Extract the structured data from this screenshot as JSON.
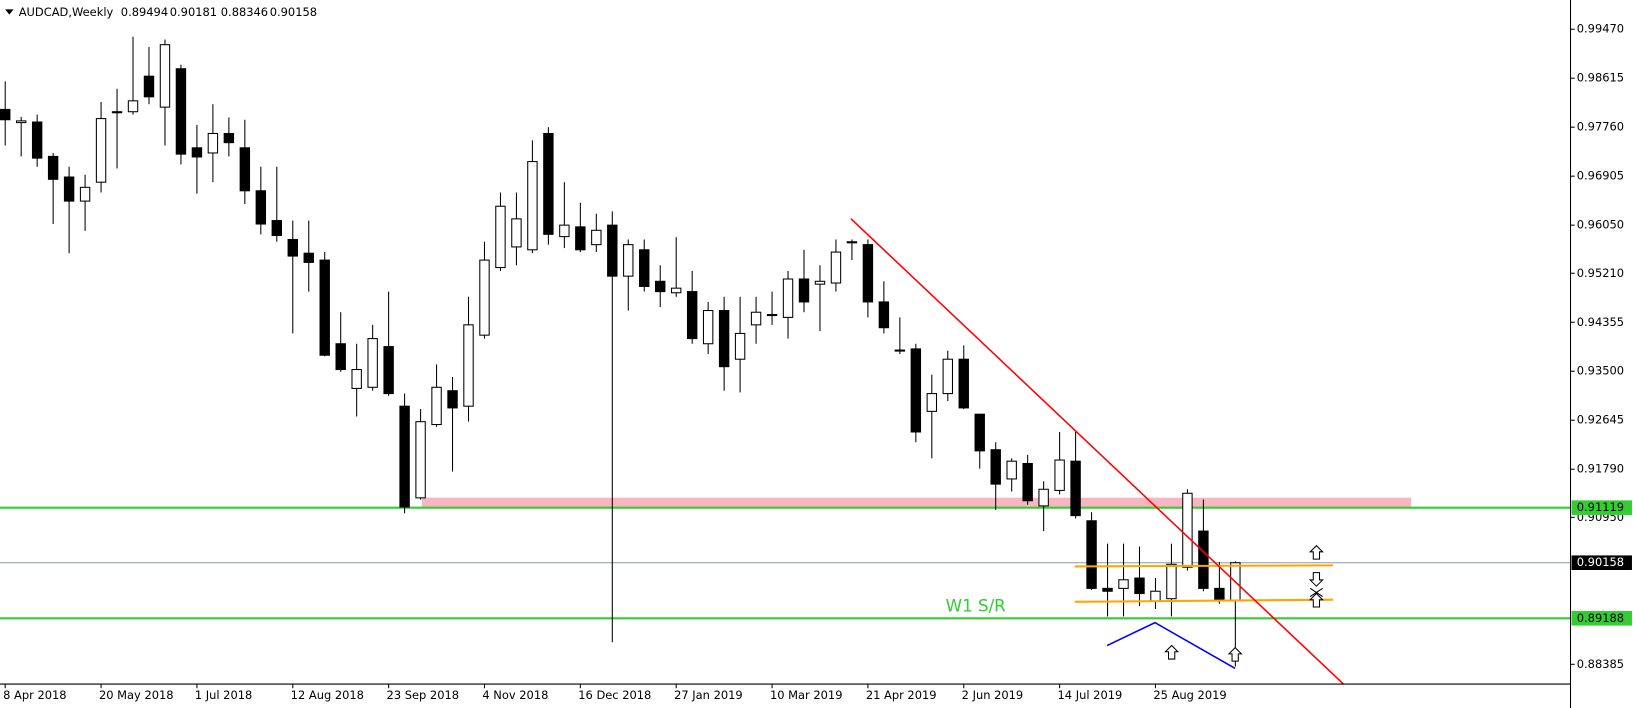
{
  "chart_data": {
    "type": "candlestick",
    "symbol": "AUDCAD,Weekly",
    "categories": [
      "8 Apr 2018",
      null,
      null,
      null,
      null,
      null,
      "20 May 2018",
      null,
      null,
      null,
      null,
      null,
      "1 Jul 2018",
      null,
      null,
      null,
      null,
      null,
      "12 Aug 2018",
      null,
      null,
      null,
      null,
      null,
      "23 Sep 2018",
      null,
      null,
      null,
      null,
      null,
      "4 Nov 2018",
      null,
      null,
      null,
      null,
      null,
      "16 Dec 2018",
      null,
      null,
      null,
      null,
      null,
      "27 Jan 2019",
      null,
      null,
      null,
      null,
      null,
      "10 Mar 2019",
      null,
      null,
      null,
      null,
      null,
      "21 Apr 2019",
      null,
      null,
      null,
      null,
      null,
      "2 Jun 2019",
      null,
      null,
      null,
      null,
      null,
      "14 Jul 2019",
      null,
      null,
      null,
      null,
      null,
      "25 Aug 2019",
      null,
      null,
      null,
      null,
      null
    ],
    "open": [
      0.9807,
      0.9784,
      0.9785,
      0.9725,
      0.9689,
      0.9647,
      0.968,
      0.9802,
      0.9803,
      0.9865,
      0.9811,
      0.9878,
      0.974,
      0.9731,
      0.9765,
      0.974,
      0.9665,
      0.9613,
      0.958,
      0.9556,
      0.9544,
      0.9398,
      0.932,
      0.9322,
      0.9393,
      0.9289,
      0.9129,
      0.9257,
      0.9316,
      0.9289,
      0.9413,
      0.9531,
      0.9567,
      0.9562,
      0.9765,
      0.9585,
      0.9602,
      0.9571,
      0.9605,
      0.9516,
      0.9562,
      0.9507,
      0.9487,
      0.9489,
      0.9398,
      0.9456,
      0.9371,
      0.9431,
      0.9449,
      0.9444,
      0.9511,
      0.9502,
      0.9504,
      0.9575,
      0.9571,
      0.9471,
      0.9387,
      0.9389,
      0.928,
      0.9311,
      0.9371,
      0.9275,
      0.9213,
      0.9162,
      0.9189,
      0.9115,
      0.9142,
      0.9193,
      0.9089,
      0.8971,
      0.8971,
      0.8989,
      0.8949,
      0.8953,
      0.9008,
      0.9071,
      0.8971,
      0.89494
    ],
    "high": [
      0.9856,
      0.9794,
      0.9798,
      0.9731,
      0.9707,
      0.9693,
      0.982,
      0.9843,
      0.9934,
      0.9916,
      0.9929,
      0.9885,
      0.978,
      0.9816,
      0.9793,
      0.9789,
      0.9707,
      0.9707,
      0.9613,
      0.9613,
      0.9558,
      0.9453,
      0.9398,
      0.9431,
      0.9489,
      0.9311,
      0.9284,
      0.9362,
      0.934,
      0.948,
      0.9576,
      0.9662,
      0.9662,
      0.9753,
      0.9776,
      0.968,
      0.9644,
      0.9625,
      0.9629,
      0.958,
      0.958,
      0.9535,
      0.9584,
      0.9525,
      0.9471,
      0.948,
      0.948,
      0.948,
      0.9489,
      0.9525,
      0.9562,
      0.9535,
      0.958,
      0.958,
      0.958,
      0.9507,
      0.9444,
      0.9398,
      0.9344,
      0.9386,
      0.9395,
      0.9275,
      0.9226,
      0.9198,
      0.9204,
      0.9158,
      0.9244,
      0.9244,
      0.9104,
      0.9049,
      0.9049,
      0.9044,
      0.8989,
      0.9049,
      0.9144,
      0.9126,
      0.9017,
      0.90181
    ],
    "low": [
      0.9744,
      0.9725,
      0.9707,
      0.9607,
      0.9556,
      0.9595,
      0.9662,
      0.9704,
      0.9798,
      0.9816,
      0.9744,
      0.9711,
      0.966,
      0.968,
      0.9725,
      0.9642,
      0.9589,
      0.9576,
      0.9416,
      0.9489,
      0.9376,
      0.9349,
      0.9271,
      0.9316,
      0.9307,
      0.9102,
      0.9126,
      0.9253,
      0.9175,
      0.9262,
      0.9407,
      0.9525,
      0.9535,
      0.9556,
      0.9571,
      0.9565,
      0.9558,
      0.9558,
      0.8877,
      0.9456,
      0.9489,
      0.9462,
      0.948,
      0.9398,
      0.938,
      0.9316,
      0.9313,
      0.9398,
      0.9431,
      0.9407,
      0.9453,
      0.942,
      0.9489,
      0.9544,
      0.9444,
      0.9416,
      0.938,
      0.9226,
      0.9198,
      0.9298,
      0.9284,
      0.918,
      0.9108,
      0.914,
      0.9117,
      0.9071,
      0.9135,
      0.9093,
      0.8968,
      0.8922,
      0.8922,
      0.894,
      0.8935,
      0.8922,
      0.9002,
      0.8966,
      0.8944,
      0.88346
    ],
    "close": [
      0.9789,
      0.9787,
      0.9722,
      0.9685,
      0.9647,
      0.9671,
      0.9791,
      0.9803,
      0.9822,
      0.9829,
      0.992,
      0.9729,
      0.9724,
      0.9765,
      0.9749,
      0.9665,
      0.9607,
      0.9587,
      0.9551,
      0.954,
      0.9378,
      0.9353,
      0.9353,
      0.9407,
      0.9311,
      0.9113,
      0.9262,
      0.9322,
      0.9286,
      0.9431,
      0.9544,
      0.9638,
      0.9616,
      0.9716,
      0.9589,
      0.9605,
      0.9562,
      0.9596,
      0.9516,
      0.9571,
      0.9498,
      0.9489,
      0.9495,
      0.9407,
      0.9456,
      0.9358,
      0.9416,
      0.9453,
      0.9448,
      0.9511,
      0.9471,
      0.9507,
      0.9558,
      0.9576,
      0.9471,
      0.9426,
      0.9386,
      0.9244,
      0.9311,
      0.9371,
      0.9286,
      0.9211,
      0.9153,
      0.9193,
      0.9124,
      0.9144,
      0.9195,
      0.9098,
      0.8971,
      0.8966,
      0.8986,
      0.8962,
      0.8966,
      0.9013,
      0.9137,
      0.8971,
      0.8949,
      0.90158
    ],
    "up_color": "#ffffff",
    "down_color": "#000000",
    "ylim": [
      0.8804,
      0.9998
    ],
    "yticks": [
      {
        "value": 0.9947,
        "label": "0.99470"
      },
      0.98615,
      {
        "value": 0.9776,
        "label": "0.97760"
      },
      0.96905,
      {
        "value": 0.9605,
        "label": "0.96050"
      },
      {
        "value": 0.9521,
        "label": "0.95210"
      },
      0.94355,
      {
        "value": 0.935,
        "label": "0.93500"
      },
      0.92645,
      {
        "value": 0.9179,
        "label": "0.91790"
      },
      {
        "value": 0.9095,
        "label": "0.90950"
      },
      0.88385
    ],
    "levels": [
      {
        "value": 0.91119,
        "color": "#33cc33"
      },
      {
        "value": 0.89188,
        "color": "#33cc33"
      }
    ],
    "price_line_color": "#8899a6",
    "annotation": "W1 S/R"
  }
}
